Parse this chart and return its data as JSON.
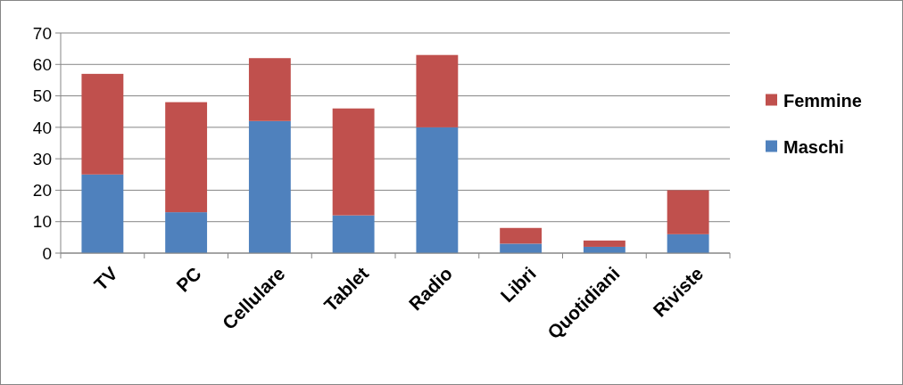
{
  "chart_data": {
    "type": "bar",
    "stacked": true,
    "categories": [
      "TV",
      "PC",
      "Cellulare",
      "Tablet",
      "Radio",
      "Libri",
      "Quotidiani",
      "Riviste"
    ],
    "series": [
      {
        "name": "Maschi",
        "color": "#4f81bd",
        "values": [
          25,
          13,
          42,
          12,
          40,
          3,
          2,
          6
        ]
      },
      {
        "name": "Femmine",
        "color": "#c0504d",
        "values": [
          32,
          35,
          20,
          34,
          23,
          5,
          2,
          14
        ]
      }
    ],
    "ylim": [
      0,
      70
    ],
    "yticks": [
      0,
      10,
      20,
      30,
      40,
      50,
      60,
      70
    ],
    "grid": "y",
    "legend": "right"
  }
}
